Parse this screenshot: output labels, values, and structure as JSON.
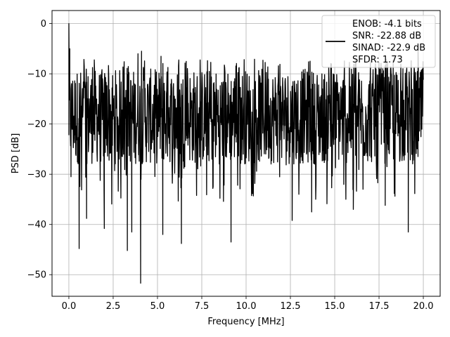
{
  "chart_data": {
    "type": "line",
    "xlabel": "Frequency [MHz]",
    "ylabel": "PSD [dB]",
    "xlim": [
      -0.95,
      20.95
    ],
    "ylim": [
      -54.3,
      2.6
    ],
    "x_ticks": [
      0.0,
      2.5,
      5.0,
      7.5,
      10.0,
      12.5,
      15.0,
      17.5,
      20.0
    ],
    "x_tick_labels": [
      "0.0",
      "2.5",
      "5.0",
      "7.5",
      "10.0",
      "12.5",
      "15.0",
      "17.5",
      "20.0"
    ],
    "y_ticks": [
      0,
      -10,
      -20,
      -30,
      -40,
      -50
    ],
    "y_tick_labels": [
      "0",
      "−10",
      "−20",
      "−30",
      "−40",
      "−50"
    ],
    "grid": true,
    "legend_position": "top-right",
    "series": [
      {
        "color": "#000000",
        "x_range": [
          0.0,
          20.0
        ],
        "sample_count": 1200,
        "typical_band_db": [
          -28,
          -9
        ],
        "notable_points": [
          {
            "x": 0.0,
            "y": 0.0
          },
          {
            "x": 0.05,
            "y": -5.0
          },
          {
            "x": 0.12,
            "y": -30.5
          },
          {
            "x": 0.58,
            "y": -44.8
          },
          {
            "x": 1.0,
            "y": -38.8
          },
          {
            "x": 2.0,
            "y": -40.8
          },
          {
            "x": 3.3,
            "y": -45.2
          },
          {
            "x": 3.55,
            "y": -41.5
          },
          {
            "x": 3.9,
            "y": -6.0
          },
          {
            "x": 4.05,
            "y": -51.7
          },
          {
            "x": 4.1,
            "y": -5.5
          },
          {
            "x": 5.3,
            "y": -42.0
          },
          {
            "x": 5.2,
            "y": -6.5
          },
          {
            "x": 6.35,
            "y": -43.8
          },
          {
            "x": 9.15,
            "y": -43.5
          },
          {
            "x": 10.95,
            "y": -7.3
          },
          {
            "x": 12.6,
            "y": -39.2
          },
          {
            "x": 13.7,
            "y": -37.5
          },
          {
            "x": 16.05,
            "y": -37.0
          },
          {
            "x": 17.85,
            "y": -36.2
          },
          {
            "x": 19.15,
            "y": -41.5
          },
          {
            "x": 19.7,
            "y": -4.5
          }
        ]
      }
    ],
    "legend": {
      "lines": [
        "ENOB: -4.1 bits",
        "SNR: -22.88 dB",
        "SINAD: -22.9 dB",
        "SFDR: 1.73"
      ]
    }
  }
}
